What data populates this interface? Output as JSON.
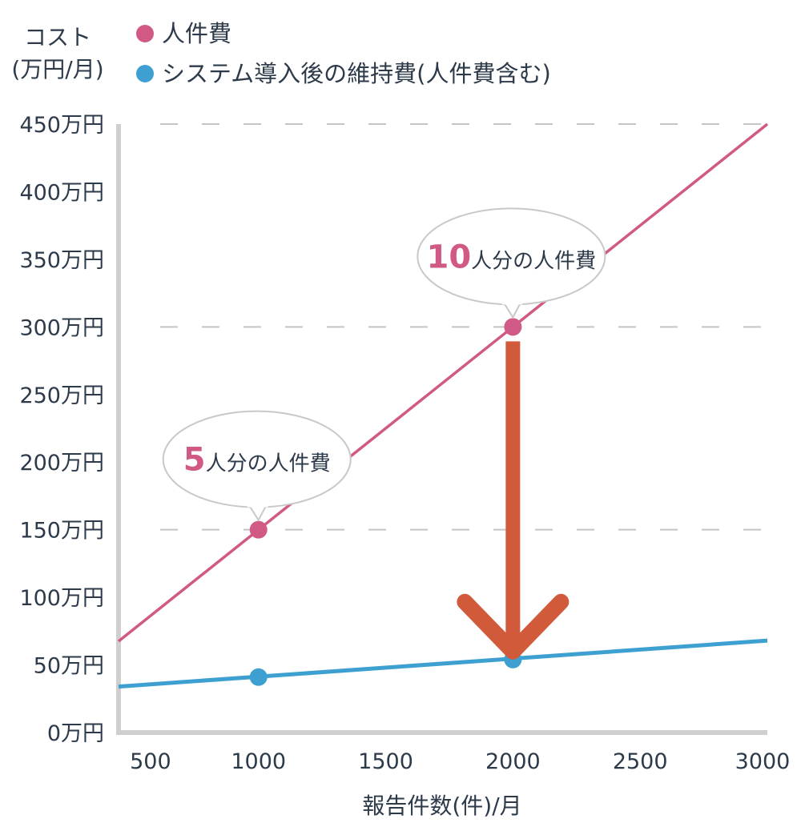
{
  "chart_data": {
    "type": "line",
    "ylabel_lines": [
      "コスト",
      "(万円/月)"
    ],
    "xlabel": "報告件数(件)/月",
    "x_ticks": [
      500,
      1000,
      1500,
      2000,
      2500,
      3000
    ],
    "x_tick_labels": [
      "500",
      "1000",
      "1500",
      "2000",
      "2500",
      "3000"
    ],
    "y_ticks": [
      0,
      50,
      100,
      150,
      200,
      250,
      300,
      350,
      400,
      450
    ],
    "y_tick_labels": [
      "0万円",
      "50万円",
      "100万円",
      "150万円",
      "200万円",
      "250万円",
      "300万円",
      "350万円",
      "400万円",
      "450万円"
    ],
    "xlim": [
      450,
      3000
    ],
    "ylim": [
      0,
      450
    ],
    "grid_dashed_y": [
      150,
      300,
      450
    ],
    "legend_position": "top",
    "series": [
      {
        "name": "人件費",
        "color": "#d05a85",
        "line": [
          [
            450,
            67.5
          ],
          [
            3000,
            450
          ]
        ],
        "markers": [
          [
            1000,
            150
          ],
          [
            2000,
            300
          ]
        ]
      },
      {
        "name": "システム導入後の維持費(人件費含む)",
        "color": "#3ea0d0",
        "line": [
          [
            450,
            34
          ],
          [
            3000,
            68
          ]
        ],
        "markers": [
          [
            1000,
            41
          ],
          [
            2000,
            54
          ]
        ]
      }
    ],
    "annotations": [
      {
        "x": 1000,
        "y": 150,
        "number": "5",
        "text": "人分の人件費"
      },
      {
        "x": 2000,
        "y": 300,
        "number": "10",
        "text": "人分の人件費"
      }
    ],
    "arrow": {
      "x": 2000,
      "from_y": 300,
      "to_y": 54,
      "color": "#d05a3a"
    }
  }
}
